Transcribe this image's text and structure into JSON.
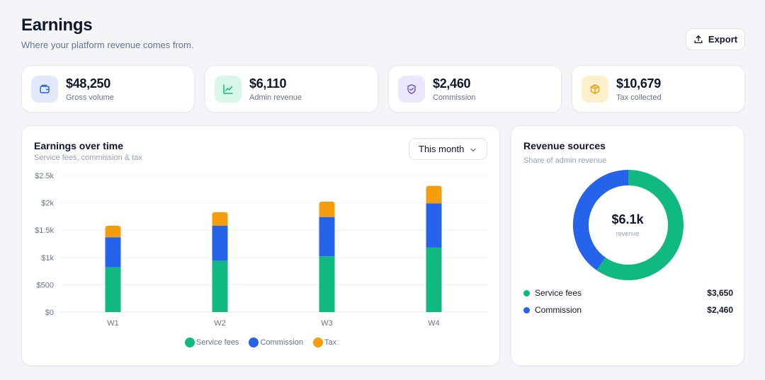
{
  "header": {
    "title": "Earnings",
    "subtitle": "Where your platform revenue comes from.",
    "export_label": "Export"
  },
  "stats": [
    {
      "value": "$48,250",
      "label": "Gross volume",
      "icon": "wallet-icon",
      "bg": "#e0e9fd",
      "fg": "#2563eb"
    },
    {
      "value": "$6,110",
      "label": "Admin revenue",
      "icon": "chart-line-icon",
      "bg": "#d8f7e8",
      "fg": "#10b981"
    },
    {
      "value": "$2,460",
      "label": "Commission",
      "icon": "shield-icon",
      "bg": "#ebe8fd",
      "fg": "#6d4be0"
    },
    {
      "value": "$10,679",
      "label": "Tax collected",
      "icon": "box-icon",
      "bg": "#fdf1cd",
      "fg": "#f59e0b"
    }
  ],
  "earnings_panel": {
    "title": "Earnings over time",
    "subtitle": "Service fees, commission & tax",
    "range_selected": "This month"
  },
  "colors": {
    "service_fees": "#10b981",
    "commission": "#2563eb",
    "tax": "#f59e0b"
  },
  "chart_data": [
    {
      "type": "bar",
      "stacked": true,
      "title": "Earnings over time",
      "categories": [
        "W1",
        "W2",
        "W3",
        "W4"
      ],
      "series": [
        {
          "name": "Service fees",
          "values": [
            820,
            940,
            1020,
            1180
          ]
        },
        {
          "name": "Commission",
          "values": [
            550,
            640,
            720,
            810
          ]
        },
        {
          "name": "Tax",
          "values": [
            210,
            250,
            280,
            320
          ]
        }
      ],
      "y_ticks": [
        "$0",
        "$500",
        "$1k",
        "$1.5k",
        "$2k",
        "$2.5k"
      ],
      "ylim": [
        0,
        2500
      ],
      "grid": true,
      "legend": "bottom"
    },
    {
      "type": "pie",
      "donut": true,
      "title": "Revenue sources",
      "subtitle": "Share of admin revenue",
      "center_value": "$6.1k",
      "center_label": "revenue",
      "slices": [
        {
          "name": "Service fees",
          "value": 3650,
          "display": "$3,650"
        },
        {
          "name": "Commission",
          "value": 2460,
          "display": "$2,460"
        }
      ],
      "legend": "bottom"
    }
  ]
}
